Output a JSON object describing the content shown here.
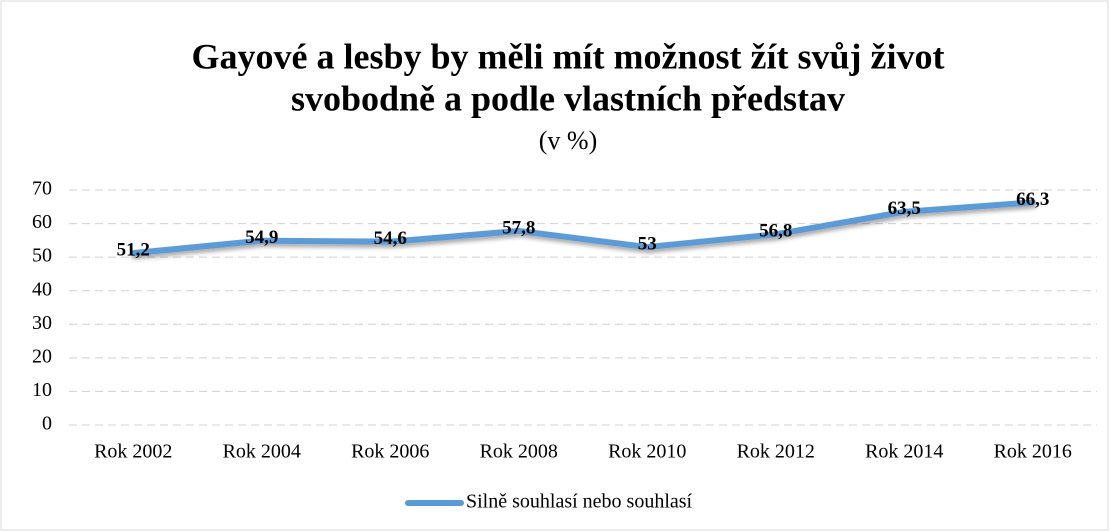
{
  "chart_data": {
    "type": "line",
    "title": [
      "Gayové a lesby by měli mít možnost žít svůj život",
      "svobodně a podle vlastních představ"
    ],
    "subtitle": "(v %)",
    "categories": [
      "Rok 2002",
      "Rok 2004",
      "Rok 2006",
      "Rok 2008",
      "Rok 2010",
      "Rok 2012",
      "Rok 2014",
      "Rok 2016"
    ],
    "series": [
      {
        "name": "Silně souhlasí nebo souhlasí",
        "color": "#5b9bd5",
        "values": [
          51.2,
          54.9,
          54.6,
          57.8,
          53,
          56.8,
          63.5,
          66.3
        ],
        "value_labels": [
          "51,2",
          "54,9",
          "54,6",
          "57,8",
          "53",
          "56,8",
          "63,5",
          "66,3"
        ]
      }
    ],
    "ylim": [
      0,
      70
    ],
    "yticks": [
      0,
      10,
      20,
      30,
      40,
      50,
      60,
      70
    ],
    "grid": true,
    "legend": "bottom"
  }
}
